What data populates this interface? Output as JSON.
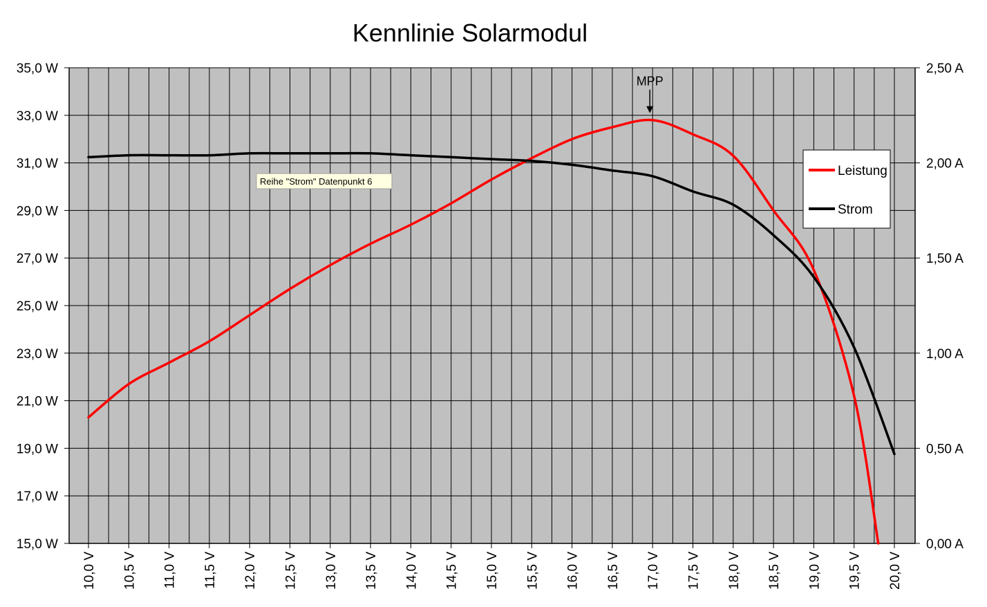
{
  "chart_data": {
    "type": "line",
    "title": "Kennlinie Solarmodul",
    "xlabel": "",
    "ylabel": "",
    "y2label": "",
    "x_ticks": [
      "10,0 V",
      "10,5 V",
      "11,0 V",
      "11,5 V",
      "12,0 V",
      "12,5 V",
      "13,0 V",
      "13,5 V",
      "14,0 V",
      "14,5 V",
      "15,0 V",
      "15,5 V",
      "16,0 V",
      "16,5 V",
      "17,0 V",
      "17,5 V",
      "18,0 V",
      "18,5 V",
      "19,0 V",
      "19,5 V",
      "20,0 V"
    ],
    "y_ticks_left": [
      "15,0 W",
      "17,0 W",
      "19,0 W",
      "21,0 W",
      "23,0 W",
      "25,0 W",
      "27,0 W",
      "29,0 W",
      "31,0 W",
      "33,0 W",
      "35,0 W"
    ],
    "y_ticks_right": [
      "0,00 A",
      "0,50 A",
      "1,00 A",
      "1,50 A",
      "2,00 A",
      "2,50 A"
    ],
    "ylim_left": [
      15,
      35
    ],
    "ylim_right": [
      0,
      2.5
    ],
    "grid": true,
    "legend_position": "right",
    "series": [
      {
        "name": "Leistung",
        "axis": "left",
        "color": "#ff0000",
        "points": [
          [
            10.0,
            20.3
          ],
          [
            10.5,
            21.7
          ],
          [
            11.0,
            22.6
          ],
          [
            11.5,
            23.5
          ],
          [
            12.0,
            24.6
          ],
          [
            12.5,
            25.7
          ],
          [
            13.0,
            26.7
          ],
          [
            13.5,
            27.6
          ],
          [
            14.0,
            28.4
          ],
          [
            14.5,
            29.3
          ],
          [
            15.0,
            30.3
          ],
          [
            15.5,
            31.2
          ],
          [
            16.0,
            32.0
          ],
          [
            16.5,
            32.5
          ],
          [
            17.0,
            32.8
          ],
          [
            17.5,
            32.2
          ],
          [
            18.0,
            31.3
          ],
          [
            18.5,
            29.0
          ],
          [
            19.0,
            26.5
          ],
          [
            19.5,
            21.2
          ],
          [
            19.8,
            15.0
          ]
        ]
      },
      {
        "name": "Strom",
        "axis": "right",
        "color": "#000000",
        "points": [
          [
            10.0,
            2.03
          ],
          [
            10.5,
            2.04
          ],
          [
            11.0,
            2.04
          ],
          [
            11.5,
            2.04
          ],
          [
            12.0,
            2.05
          ],
          [
            12.5,
            2.05
          ],
          [
            13.0,
            2.05
          ],
          [
            13.5,
            2.05
          ],
          [
            14.0,
            2.04
          ],
          [
            14.5,
            2.03
          ],
          [
            15.0,
            2.02
          ],
          [
            15.5,
            2.01
          ],
          [
            16.0,
            1.99
          ],
          [
            16.5,
            1.96
          ],
          [
            17.0,
            1.93
          ],
          [
            17.5,
            1.85
          ],
          [
            18.0,
            1.78
          ],
          [
            18.5,
            1.62
          ],
          [
            19.0,
            1.4
          ],
          [
            19.5,
            1.03
          ],
          [
            20.0,
            0.47
          ]
        ]
      }
    ],
    "annotations": [
      {
        "text": "MPP",
        "x": 17.0,
        "y": 32.8,
        "axis": "left"
      }
    ],
    "tooltip": "Reihe \"Strom\" Datenpunkt 6"
  }
}
